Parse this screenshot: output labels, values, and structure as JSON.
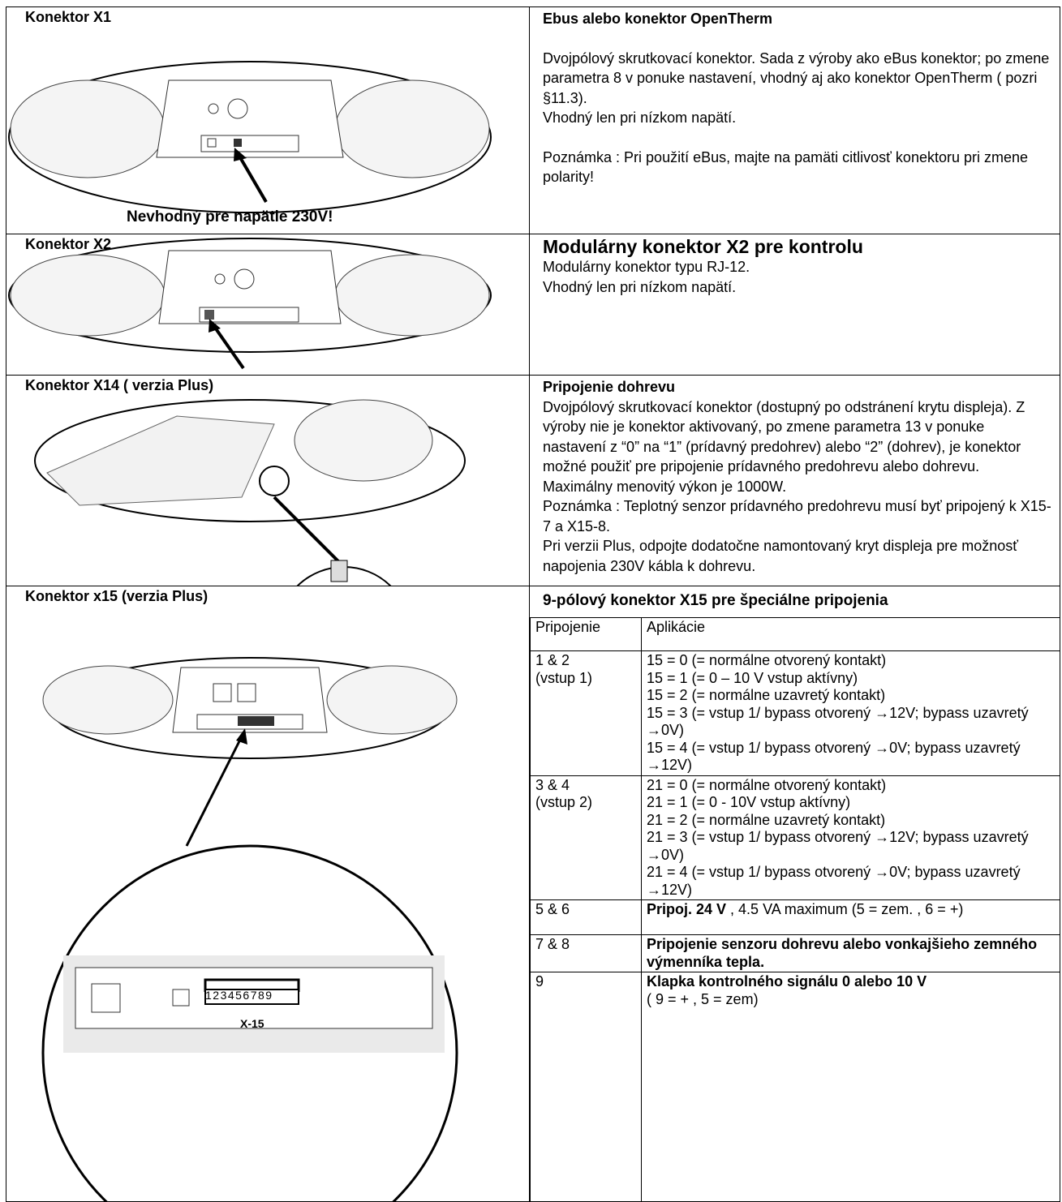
{
  "sections": [
    {
      "label": "Konektor X1",
      "image_caption": "Nevhodný pre napätie 230V!",
      "heading": "Ebus alebo konektor OpenTherm",
      "paragraphs": [
        "Dvojpólový skrutkovací konektor. Sada z výroby ako eBus konektor; po zmene parametra 8 v ponuke nastavení, vhodný aj ako konektor OpenTherm ( pozri §11.3).",
        "Vhodný len pri nízkom napätí.",
        "Poznámka : Pri použití eBus, majte na pamäti citlivosť konektoru pri zmene polarity!"
      ]
    },
    {
      "label": "Konektor X2",
      "heading": "Modulárny konektor X2 pre kontrolu",
      "paragraphs": [
        "Modulárny konektor typu  RJ-12.",
        "Vhodný len pri nízkom napätí."
      ]
    },
    {
      "label": "Konektor X14 ( verzia Plus)",
      "heading": "Pripojenie dohrevu",
      "paragraphs": [
        "Dvojpólový skrutkovací konektor (dostupný po odstránení krytu displeja). Z výroby nie je konektor aktivovaný, po zmene parametra 13 v ponuke nastavení z “0” na “1” (prídavný predohrev) alebo “2” (dohrev), je konektor možné použiť pre pripojenie prídavného predohrevu alebo dohrevu.",
        "Maximálny menovitý výkon je 1000W.",
        "Poznámka : Teplotný senzor prídavného predohrevu musí byť pripojený k X15-7 a X15-8.",
        "Pri verzii Plus, odpojte dodatočne namontovaný kryt displeja pre možnosť napojenia 230V kábla k dohrevu."
      ]
    },
    {
      "label": "Konektor x15 (verzia Plus)",
      "image_labels": [
        "123456789",
        "X-15"
      ],
      "heading": "9-pólový konektor X15 pre špeciálne pripojenia",
      "table": {
        "header": [
          "Pripojenie",
          "Aplikácie"
        ],
        "rows": [
          {
            "connection": [
              "1 & 2",
              "(vstup 1)"
            ],
            "lines": [
              "15 = 0 (= normálne otvorený kontakt)",
              "15 = 1 (= 0 – 10 V vstup aktívny)",
              "15 = 2 (= normálne uzavretý kontakt)",
              "15 = 3 (= vstup 1/ bypass otvorený →12V; bypass uzavretý →0V)",
              "15 = 4 (= vstup 1/ bypass otvorený →0V; bypass uzavretý →12V)"
            ]
          },
          {
            "connection": [
              "3 & 4",
              "(vstup 2)"
            ],
            "lines": [
              "21 = 0 (= normálne otvorený kontakt)",
              "21 = 1 (= 0 - 10V vstup aktívny)",
              "21 = 2 (= normálne uzavretý kontakt)",
              "21 = 3 (= vstup 1/ bypass otvorený →12V; bypass uzavretý →0V)",
              "21 = 4 (= vstup 1/ bypass otvorený →0V; bypass uzavretý →12V)"
            ]
          },
          {
            "connection": [
              "5 & 6"
            ],
            "bold": "Pripoj. 24 V",
            "text": " , 4.5 VA maximum (5 = zem. , 6 = +)"
          },
          {
            "connection": [
              "7 & 8"
            ],
            "bold": "Pripojenie senzoru dohrevu alebo vonkajšieho zemného výmenníka tepla."
          },
          {
            "connection": [
              "9"
            ],
            "bold": "Klapka kontrolného signálu 0 alebo 10 V",
            "lines": [
              "( 9 = + , 5 = zem)"
            ]
          }
        ]
      }
    }
  ]
}
